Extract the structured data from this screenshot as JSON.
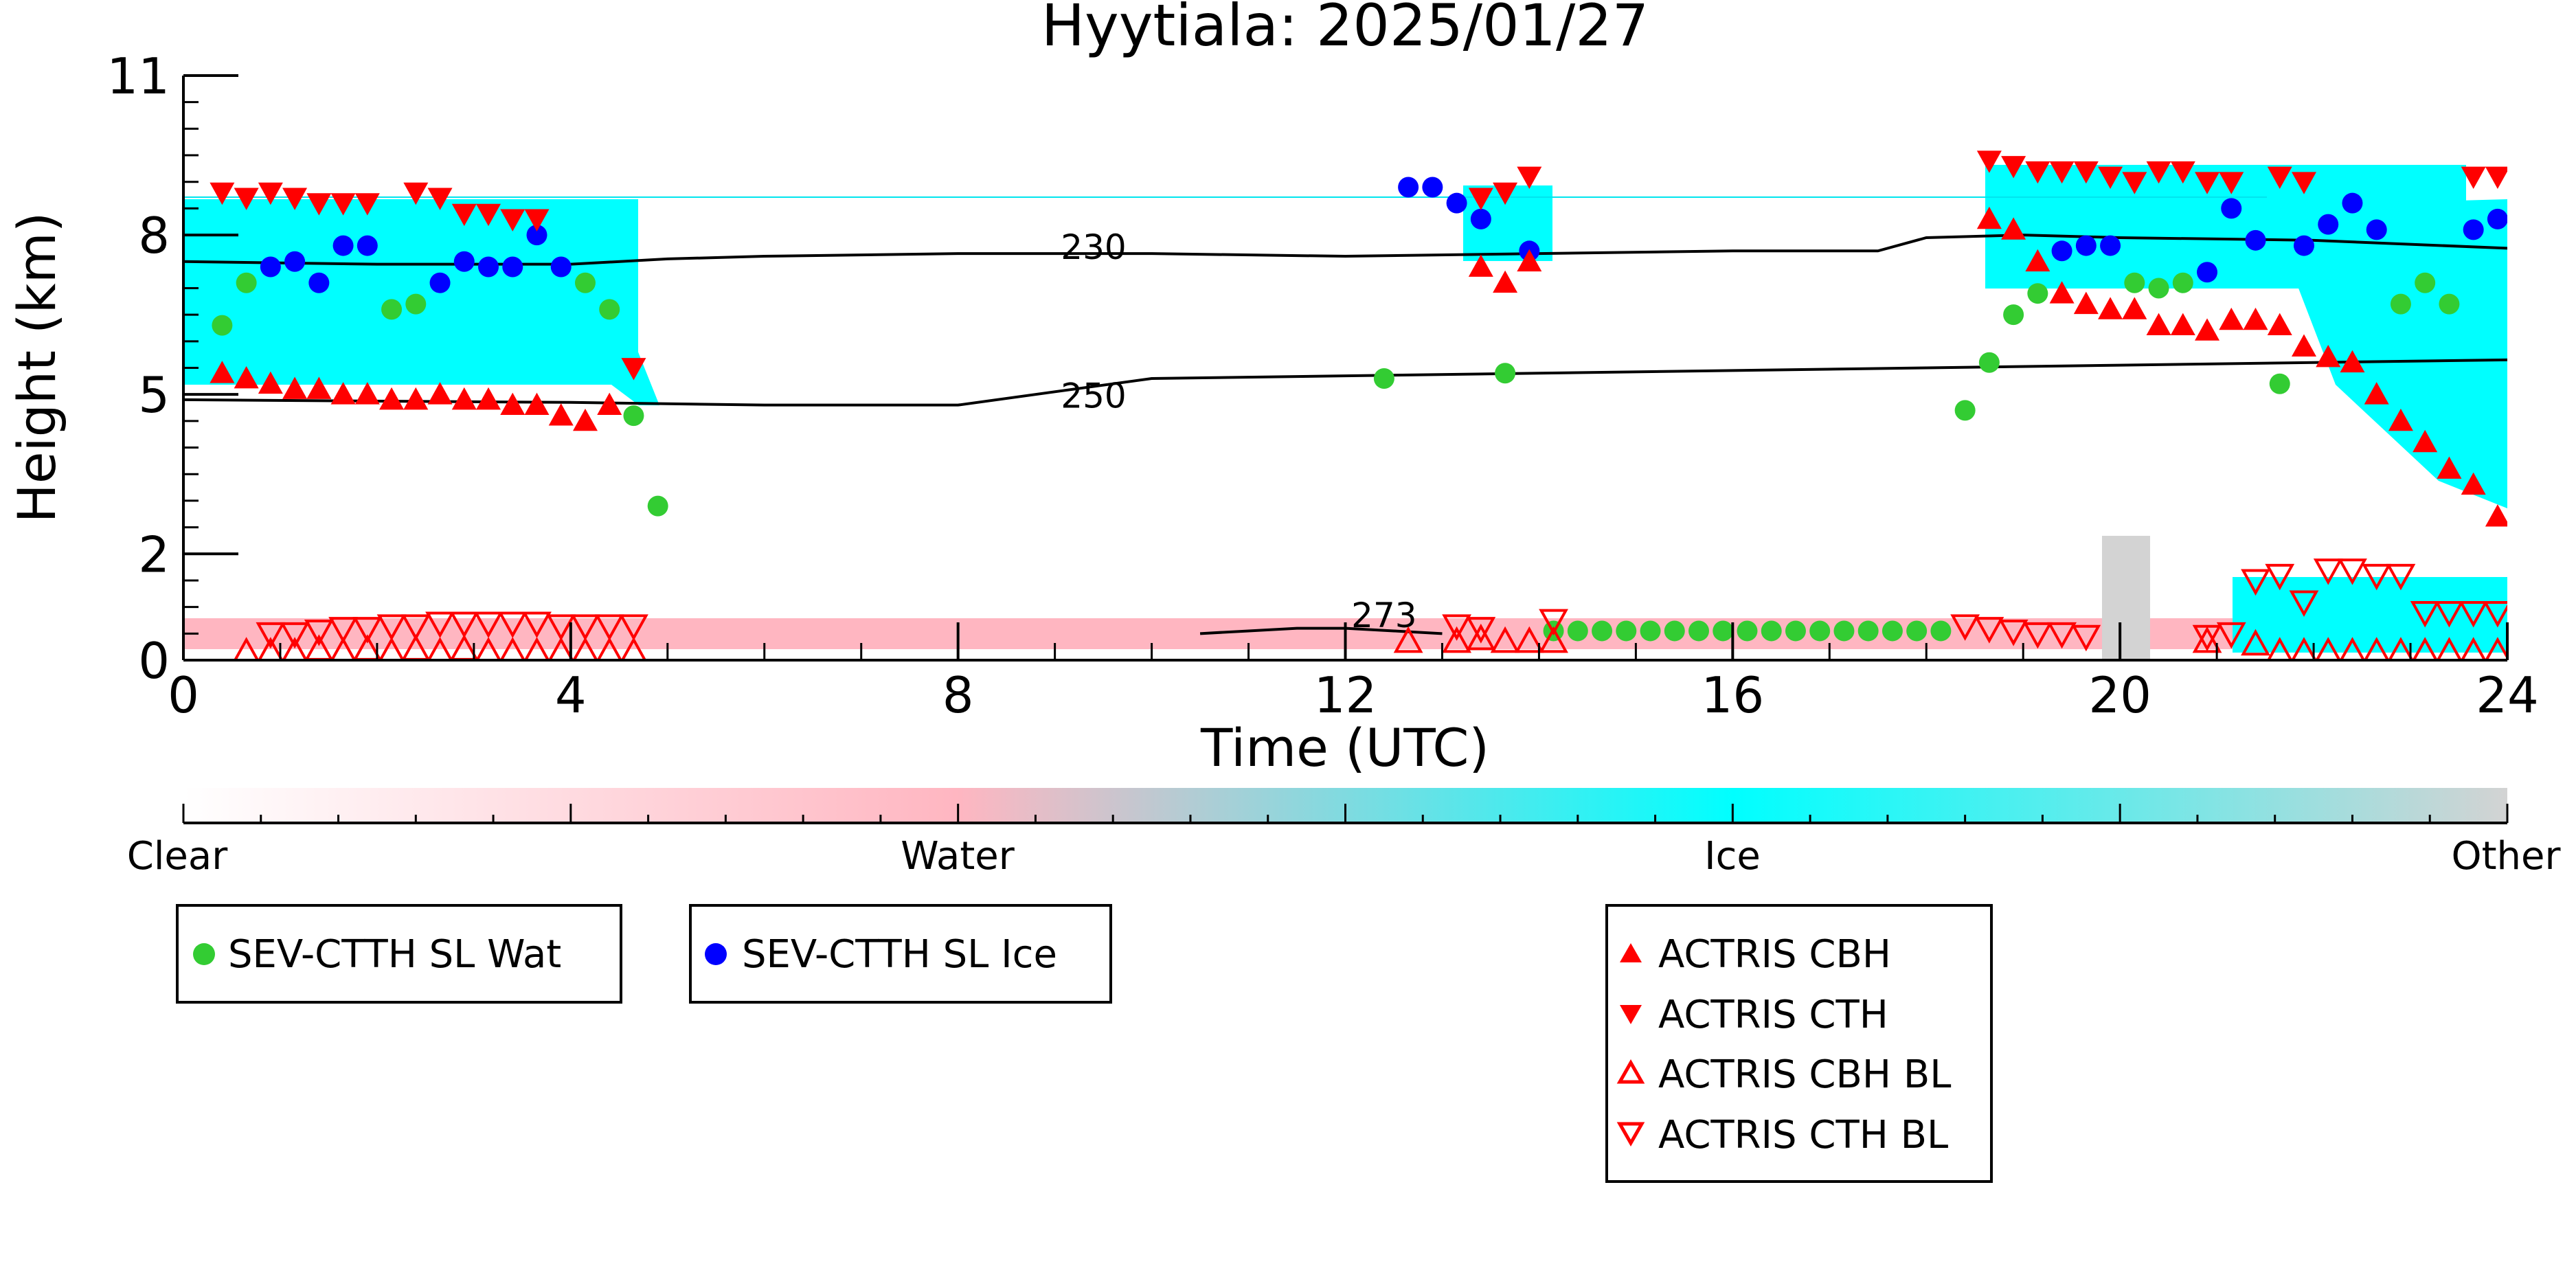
{
  "chart_data": {
    "type": "scatter",
    "title": "Hyytiala: 2025/01/27",
    "xlabel": "Time (UTC)",
    "ylabel": "Height (km)",
    "xlim": [
      0,
      24
    ],
    "ylim": [
      0,
      11
    ],
    "x_ticks": [
      0,
      4,
      8,
      12,
      16,
      20,
      24
    ],
    "y_ticks": [
      0,
      2,
      5,
      8,
      11
    ],
    "grid": false,
    "colorbar": {
      "labels": [
        "Clear",
        "Water",
        "Ice",
        "Other"
      ],
      "colors": [
        "#ffffff",
        "#ffb6c1",
        "#00ffff",
        "#d3d3d3"
      ]
    },
    "contours": [
      {
        "label": "230",
        "x": [
          0,
          2,
          4,
          5,
          6,
          8,
          10,
          12,
          14,
          16,
          17.5,
          18,
          19,
          20,
          22,
          24
        ],
        "y": [
          7.5,
          7.45,
          7.45,
          7.55,
          7.6,
          7.65,
          7.65,
          7.6,
          7.65,
          7.7,
          7.7,
          7.95,
          8.0,
          7.95,
          7.9,
          7.75
        ]
      },
      {
        "label": "250",
        "x": [
          0,
          4,
          6,
          8,
          10,
          12,
          14,
          16,
          18,
          20,
          22,
          24
        ],
        "y": [
          4.9,
          4.85,
          4.8,
          4.8,
          5.3,
          5.35,
          5.4,
          5.45,
          5.5,
          5.55,
          5.6,
          5.65
        ]
      },
      {
        "label": "273",
        "x": [
          10.5,
          11,
          11.5,
          12,
          12.5,
          13
        ],
        "y": [
          0.5,
          0.55,
          0.6,
          0.6,
          0.55,
          0.5
        ]
      }
    ],
    "series": [
      {
        "name": "SEV-CTTH SL Wat",
        "marker": "circle",
        "color": "#33cc33",
        "x": [
          0.4,
          0.65,
          2.15,
          2.4,
          4.15,
          4.4,
          4.65,
          4.9,
          12.4,
          13.65,
          14.15,
          14.4,
          14.65,
          14.9,
          15.15,
          15.4,
          15.65,
          15.9,
          16.15,
          16.4,
          16.65,
          16.9,
          17.15,
          17.4,
          17.65,
          17.9,
          18.15,
          18.4,
          18.65,
          18.9,
          19.15,
          20.15,
          20.4,
          20.65,
          21.65,
          22.9,
          23.15,
          23.4
        ],
        "y": [
          6.3,
          7.1,
          6.6,
          6.7,
          7.1,
          6.6,
          4.6,
          2.9,
          5.3,
          5.4,
          0.55,
          0.55,
          0.55,
          0.55,
          0.55,
          0.55,
          0.55,
          0.55,
          0.55,
          0.55,
          0.55,
          0.55,
          0.55,
          0.55,
          0.55,
          0.55,
          0.55,
          4.7,
          5.6,
          6.5,
          6.9,
          7.1,
          7.0,
          7.1,
          5.2,
          6.7,
          7.1,
          6.7
        ]
      },
      {
        "name": "SEV-CTTH SL Ice",
        "marker": "circle",
        "color": "#0000ff",
        "x": [
          0.9,
          1.15,
          1.4,
          1.65,
          1.9,
          2.65,
          2.9,
          3.15,
          3.4,
          3.65,
          3.9,
          12.65,
          12.9,
          13.15,
          13.4,
          13.9,
          19.4,
          19.65,
          19.9,
          20.9,
          21.15,
          21.4,
          21.9,
          22.15,
          22.4,
          22.65,
          23.65,
          23.9
        ],
        "y": [
          7.4,
          7.5,
          7.1,
          7.8,
          7.8,
          7.1,
          7.5,
          7.4,
          7.4,
          8.0,
          7.4,
          8.9,
          8.9,
          8.6,
          8.3,
          7.7,
          7.7,
          7.8,
          7.8,
          7.3,
          8.5,
          7.9,
          7.8,
          8.2,
          8.6,
          8.1,
          8.1,
          8.3
        ]
      },
      {
        "name": "ACTRIS CBH",
        "marker": "triangle-up",
        "color": "#ff0000",
        "x": [
          0.4,
          0.65,
          0.9,
          1.15,
          1.4,
          1.65,
          1.9,
          2.15,
          2.4,
          2.65,
          2.9,
          3.15,
          3.4,
          3.65,
          3.9,
          4.15,
          4.4,
          13.4,
          13.65,
          13.9,
          18.65,
          18.9,
          19.15,
          19.4,
          19.65,
          19.9,
          20.15,
          20.4,
          20.65,
          20.9,
          21.15,
          21.4,
          21.65,
          21.9,
          22.15,
          22.4,
          22.65,
          22.9,
          23.15,
          23.4,
          23.65,
          23.9
        ],
        "y": [
          5.4,
          5.3,
          5.2,
          5.1,
          5.1,
          5.0,
          5.0,
          4.9,
          4.9,
          5.0,
          4.9,
          4.9,
          4.8,
          4.8,
          4.6,
          4.5,
          4.8,
          7.4,
          7.1,
          7.5,
          8.3,
          8.1,
          7.5,
          6.9,
          6.7,
          6.6,
          6.6,
          6.3,
          6.3,
          6.2,
          6.4,
          6.4,
          6.3,
          5.9,
          5.7,
          5.6,
          5.0,
          4.5,
          4.1,
          3.6,
          3.3,
          2.7
        ]
      },
      {
        "name": "ACTRIS CTH",
        "marker": "triangle-down",
        "color": "#ff0000",
        "x": [
          0.4,
          0.65,
          0.9,
          1.15,
          1.4,
          1.65,
          1.9,
          2.4,
          2.65,
          2.9,
          3.15,
          3.4,
          3.65,
          4.65,
          13.4,
          13.65,
          13.9,
          18.65,
          18.9,
          19.15,
          19.4,
          19.65,
          19.9,
          20.15,
          20.4,
          20.65,
          20.9,
          21.15,
          21.65,
          21.9,
          23.65,
          23.9
        ],
        "y": [
          8.8,
          8.7,
          8.8,
          8.7,
          8.6,
          8.6,
          8.6,
          8.8,
          8.7,
          8.4,
          8.4,
          8.3,
          8.3,
          5.5,
          8.7,
          8.8,
          9.1,
          9.4,
          9.3,
          9.2,
          9.2,
          9.2,
          9.1,
          9.0,
          9.2,
          9.2,
          9.0,
          9.0,
          9.1,
          9.0,
          9.1,
          9.1
        ]
      },
      {
        "name": "ACTRIS CBH BL",
        "marker": "triangle-up-open",
        "color": "#ff0000",
        "x": [
          0.65,
          0.9,
          1.15,
          1.4,
          1.65,
          1.9,
          2.15,
          2.4,
          2.65,
          2.9,
          3.15,
          3.4,
          3.65,
          3.9,
          4.15,
          4.4,
          4.65,
          12.65,
          13.15,
          13.4,
          13.65,
          13.9,
          14.15,
          20.9,
          21.4,
          21.65,
          21.9,
          22.15,
          22.4,
          22.65,
          22.9,
          23.15,
          23.4,
          23.65,
          23.9
        ],
        "y": [
          0.15,
          0.15,
          0.15,
          0.2,
          0.15,
          0.2,
          0.15,
          0.2,
          0.15,
          0.2,
          0.15,
          0.15,
          0.15,
          0.15,
          0.15,
          0.15,
          0.15,
          0.35,
          0.35,
          0.4,
          0.35,
          0.35,
          0.35,
          0.35,
          0.3,
          0.15,
          0.15,
          0.15,
          0.15,
          0.15,
          0.15,
          0.15,
          0.15,
          0.15,
          0.15
        ]
      },
      {
        "name": "ACTRIS CTH BL",
        "marker": "triangle-down-open",
        "color": "#ff0000",
        "x": [
          0.9,
          1.15,
          1.4,
          1.65,
          1.9,
          2.15,
          2.4,
          2.65,
          2.9,
          3.15,
          3.4,
          3.65,
          3.9,
          4.15,
          4.4,
          4.65,
          13.15,
          13.4,
          14.15,
          18.4,
          18.65,
          18.9,
          19.15,
          19.4,
          19.65,
          20.9,
          21.15,
          21.4,
          21.65,
          21.9,
          22.15,
          22.4,
          22.65,
          22.9,
          23.15,
          23.4,
          23.65,
          23.9
        ],
        "y": [
          0.5,
          0.5,
          0.55,
          0.6,
          0.6,
          0.65,
          0.65,
          0.7,
          0.7,
          0.7,
          0.7,
          0.7,
          0.65,
          0.65,
          0.65,
          0.65,
          0.65,
          0.6,
          0.75,
          0.65,
          0.6,
          0.55,
          0.5,
          0.5,
          0.45,
          0.45,
          0.5,
          1.5,
          1.6,
          1.1,
          1.7,
          1.7,
          1.6,
          1.6,
          0.9,
          0.9,
          0.9,
          0.9
        ]
      }
    ],
    "legend": [
      {
        "label": "SEV-CTTH SL Wat"
      },
      {
        "label": "SEV-CTTH SL Ice"
      },
      {
        "label": "ACTRIS CBH"
      },
      {
        "label": "ACTRIS CTH"
      },
      {
        "label": "ACTRIS CBH BL"
      },
      {
        "label": "ACTRIS CTH BL"
      }
    ]
  }
}
